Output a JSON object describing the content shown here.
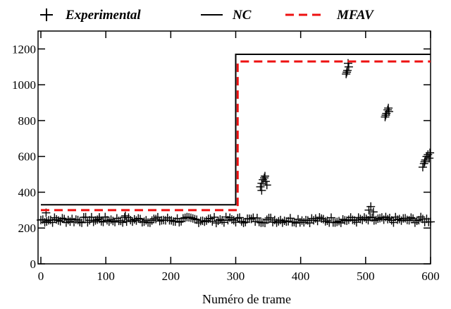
{
  "chart_data": {
    "type": "line",
    "title": "",
    "xlabel": "Numéro de trame",
    "ylabel": "",
    "xlim": [
      0,
      600
    ],
    "ylim": [
      0,
      1300
    ],
    "x_ticks": [
      0,
      100,
      200,
      300,
      400,
      500,
      600
    ],
    "y_ticks": [
      0,
      200,
      400,
      600,
      800,
      1000,
      1200
    ],
    "x_tick_labels": [
      "0",
      "100",
      "200",
      "300",
      "400",
      "500",
      "600"
    ],
    "y_tick_labels": [
      "0",
      "200",
      "400",
      "600",
      "800",
      "1000",
      "1200"
    ],
    "grid": false,
    "legend_position": "top",
    "series": [
      {
        "name": "Experimental",
        "style": "marker-plus",
        "color": "#000000",
        "baseline": {
          "x_start": 0,
          "x_end": 600,
          "step": 3,
          "y_low": 228,
          "y_high": 262
        },
        "points": [
          [
            8,
            285
          ],
          [
            90,
            260
          ],
          [
            130,
            268
          ],
          [
            505,
            300
          ],
          [
            508,
            320
          ],
          [
            512,
            290
          ],
          [
            338,
            430
          ],
          [
            340,
            450
          ],
          [
            342,
            470
          ],
          [
            344,
            480
          ],
          [
            346,
            460
          ],
          [
            348,
            440
          ],
          [
            340,
            410
          ],
          [
            345,
            490
          ],
          [
            470,
            1060
          ],
          [
            472,
            1080
          ],
          [
            474,
            1100
          ],
          [
            471,
            1070
          ],
          [
            473,
            1120
          ],
          [
            530,
            820
          ],
          [
            532,
            840
          ],
          [
            534,
            860
          ],
          [
            536,
            850
          ],
          [
            531,
            830
          ],
          [
            535,
            870
          ],
          [
            588,
            540
          ],
          [
            590,
            560
          ],
          [
            592,
            580
          ],
          [
            594,
            600
          ],
          [
            596,
            610
          ],
          [
            598,
            590
          ],
          [
            591,
            570
          ],
          [
            599,
            620
          ]
        ]
      },
      {
        "name": "NC",
        "style": "solid",
        "color": "#000000",
        "x": [
          0,
          300,
          300,
          600
        ],
        "y": [
          330,
          330,
          1170,
          1170
        ]
      },
      {
        "name": "MFAV",
        "style": "dashed",
        "color": "#ee1111",
        "x": [
          0,
          303,
          303,
          600
        ],
        "y": [
          300,
          300,
          1130,
          1130
        ]
      }
    ]
  }
}
